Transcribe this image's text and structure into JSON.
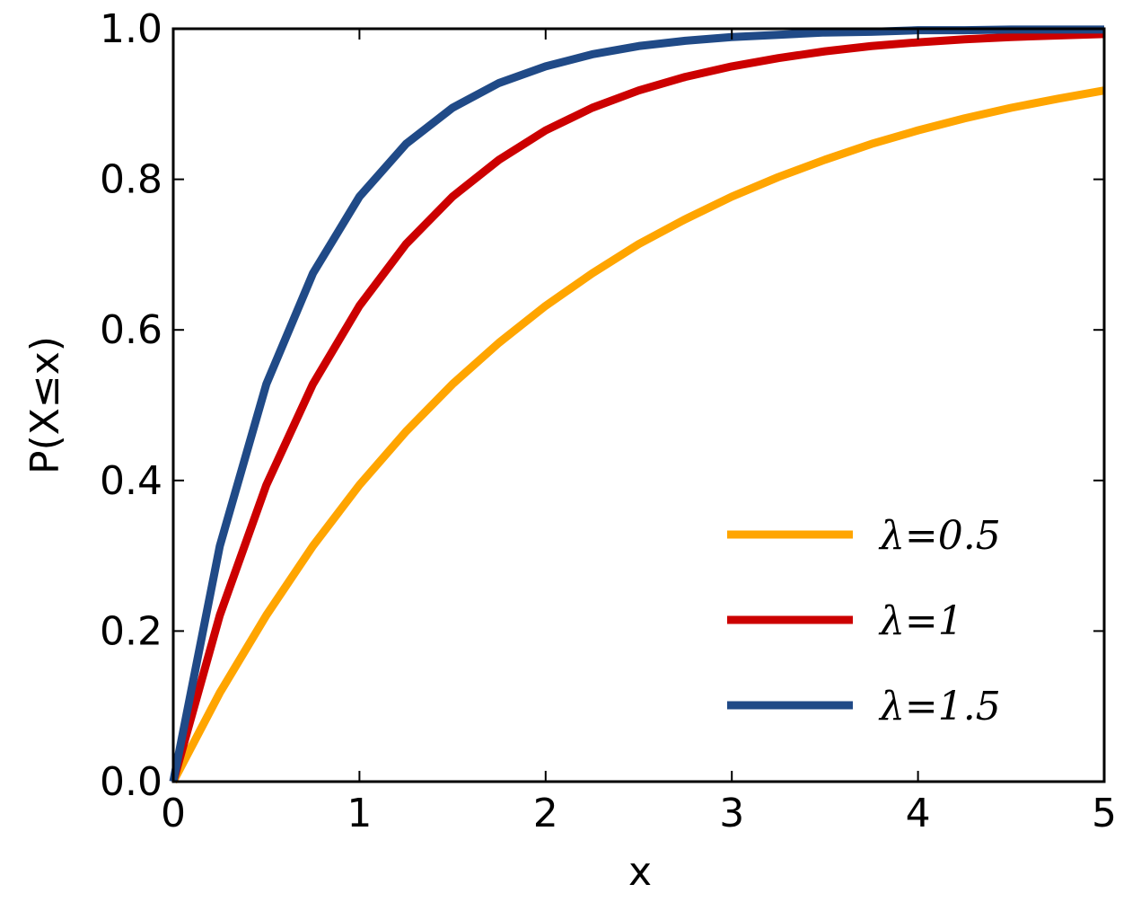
{
  "chart_data": {
    "type": "line",
    "xlabel": "x",
    "ylabel": "P(X≤x)",
    "x": [
      0,
      0.25,
      0.5,
      0.75,
      1,
      1.25,
      1.5,
      1.75,
      2,
      2.25,
      2.5,
      2.75,
      3,
      3.25,
      3.5,
      3.75,
      4,
      4.25,
      4.5,
      4.75,
      5
    ],
    "series": [
      {
        "name": "λ=0.5",
        "color": "#ffa500",
        "values": [
          0,
          0.118,
          0.221,
          0.313,
          0.394,
          0.465,
          0.528,
          0.583,
          0.632,
          0.675,
          0.714,
          0.747,
          0.777,
          0.803,
          0.826,
          0.847,
          0.865,
          0.881,
          0.895,
          0.907,
          0.918
        ]
      },
      {
        "name": "λ=1",
        "color": "#cc0000",
        "values": [
          0,
          0.221,
          0.394,
          0.528,
          0.632,
          0.714,
          0.777,
          0.826,
          0.865,
          0.895,
          0.918,
          0.936,
          0.95,
          0.961,
          0.97,
          0.977,
          0.982,
          0.986,
          0.989,
          0.991,
          0.993
        ]
      },
      {
        "name": "λ=1.5",
        "color": "#204a87",
        "values": [
          0,
          0.313,
          0.528,
          0.675,
          0.777,
          0.847,
          0.895,
          0.928,
          0.95,
          0.966,
          0.977,
          0.984,
          0.989,
          0.992,
          0.995,
          0.996,
          0.998,
          0.998,
          0.999,
          0.999,
          0.999
        ]
      }
    ],
    "xlim": [
      0,
      5
    ],
    "ylim": [
      0,
      1
    ],
    "xticks": [
      0,
      1,
      2,
      3,
      4,
      5
    ],
    "yticks": [
      {
        "value": 0,
        "label": "0.0"
      },
      0.2,
      0.4,
      0.6,
      0.8,
      {
        "value": 1,
        "label": "1.0"
      }
    ],
    "legend": "lower right"
  }
}
